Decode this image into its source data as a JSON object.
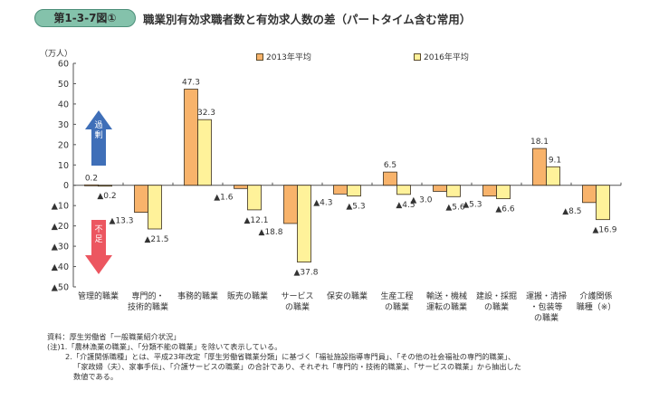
{
  "header": {
    "figure_number": "第1-3-7図①",
    "title": "職業別有効求職者数と有効求人数の差（パートタイム含む常用）"
  },
  "colors": {
    "badge": "#84c2ab",
    "series_2013": "#f8b36b",
    "series_2016": "#fff29a",
    "bar_border": "#3b2f1e",
    "surplus_arrow": "#3f6fb8",
    "shortage_arrow": "#ec5660"
  },
  "chart_data": {
    "type": "bar",
    "title": "職業別有効求職者数と有効求人数の差（パートタイム含む常用）",
    "ylabel": "（万人）",
    "xlabel": "",
    "ylim": [
      -50,
      60
    ],
    "yticks": [
      60,
      50,
      40,
      30,
      20,
      10,
      0,
      -10,
      -20,
      -30,
      -40,
      -50
    ],
    "ytick_labels": [
      "60",
      "50",
      "40",
      "30",
      "20",
      "10",
      "0",
      "▲10",
      "▲20",
      "▲30",
      "▲40",
      "▲50"
    ],
    "grid": false,
    "legend_position": "top",
    "categories": [
      [
        "管理的職業"
      ],
      [
        "専門的・",
        "技術的職業"
      ],
      [
        "事務的職業"
      ],
      [
        "販売の職業"
      ],
      [
        "サービス",
        "の職業"
      ],
      [
        "保安の職業"
      ],
      [
        "生産工程",
        "の職業"
      ],
      [
        "輸送・機械",
        "運転の職業"
      ],
      [
        "建設・採掘",
        "の職業"
      ],
      [
        "運搬・清掃",
        "・包装等",
        "の職業"
      ],
      [
        "介護関係",
        "職種（※）"
      ]
    ],
    "series": [
      {
        "name": "2013年平均",
        "values": [
          0.2,
          -13.3,
          47.3,
          -1.6,
          -18.8,
          -4.3,
          6.5,
          -3.0,
          -5.3,
          18.1,
          -8.5
        ],
        "labels": [
          "0.2",
          "▲13.3",
          "47.3",
          "▲1.6",
          "▲18.8",
          "▲4.3",
          "6.5",
          "▲ 3.0",
          "▲5.3",
          "18.1",
          "▲8.5"
        ]
      },
      {
        "name": "2016年平均",
        "values": [
          -0.2,
          -21.5,
          32.3,
          -12.1,
          -37.8,
          -5.3,
          -4.5,
          -5.6,
          -6.6,
          9.1,
          -16.9
        ],
        "labels": [
          "▲0.2",
          "▲21.5",
          "32.3",
          "▲12.1",
          "▲37.8",
          "▲5.3",
          "▲4.5",
          "▲5.6",
          "▲6.6",
          "9.1",
          "▲16.9"
        ]
      }
    ],
    "annotations": {
      "surplus": "過剰",
      "shortage": "不足"
    }
  },
  "notes": {
    "source": "資料：厚生労働省「一般職業紹介状況」",
    "note1": "(注)1.「農林漁業の職業」、「分類不能の職業」を除いて表示している。",
    "note2_line1": "2.「介護関係職種」とは、平成23年改定「厚生労働省職業分類」に基づく「福祉施設指導専門員」、「その他の社会福祉の専門的職業」、",
    "note2_line2": "「家政婦（夫）、家事手伝」、「介護サービスの職業」の合計であり、それぞれ「専門的・技術的職業」、「サービスの職業」から抽出した",
    "note2_line3": "数値である。"
  }
}
